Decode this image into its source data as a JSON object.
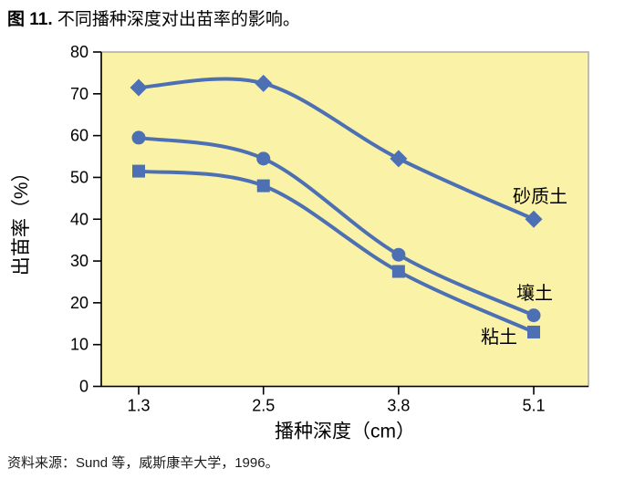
{
  "title": {
    "prefix": "图 11.",
    "text": " 不同播种深度对出苗率的影响。"
  },
  "source": "资料来源：Sund 等，威斯康辛大学，1996。",
  "chart_data": {
    "type": "line",
    "x": [
      1.3,
      2.5,
      3.8,
      5.1
    ],
    "x_tick_labels": [
      "1.3",
      "2.5",
      "3.8",
      "5.1"
    ],
    "xlabel": "播种深度（cm）",
    "ylabel": "出苗率（%）",
    "ylim": [
      0,
      80
    ],
    "ytick_step": 10,
    "grid": false,
    "legend_position": "inline-right",
    "series": [
      {
        "name": "砂质土",
        "marker": "diamond",
        "values": [
          71.5,
          72.5,
          54.5,
          40
        ]
      },
      {
        "name": "壤土",
        "marker": "circle",
        "values": [
          59.5,
          54.5,
          31.5,
          17
        ]
      },
      {
        "name": "粘土",
        "marker": "square",
        "values": [
          51.5,
          48,
          27.5,
          13
        ]
      }
    ],
    "colors": {
      "line": "#4c70b3",
      "plot_bg": "#faf2a6",
      "plot_border": "#aaaaaa",
      "axis": "#000000",
      "text": "#000000"
    }
  }
}
